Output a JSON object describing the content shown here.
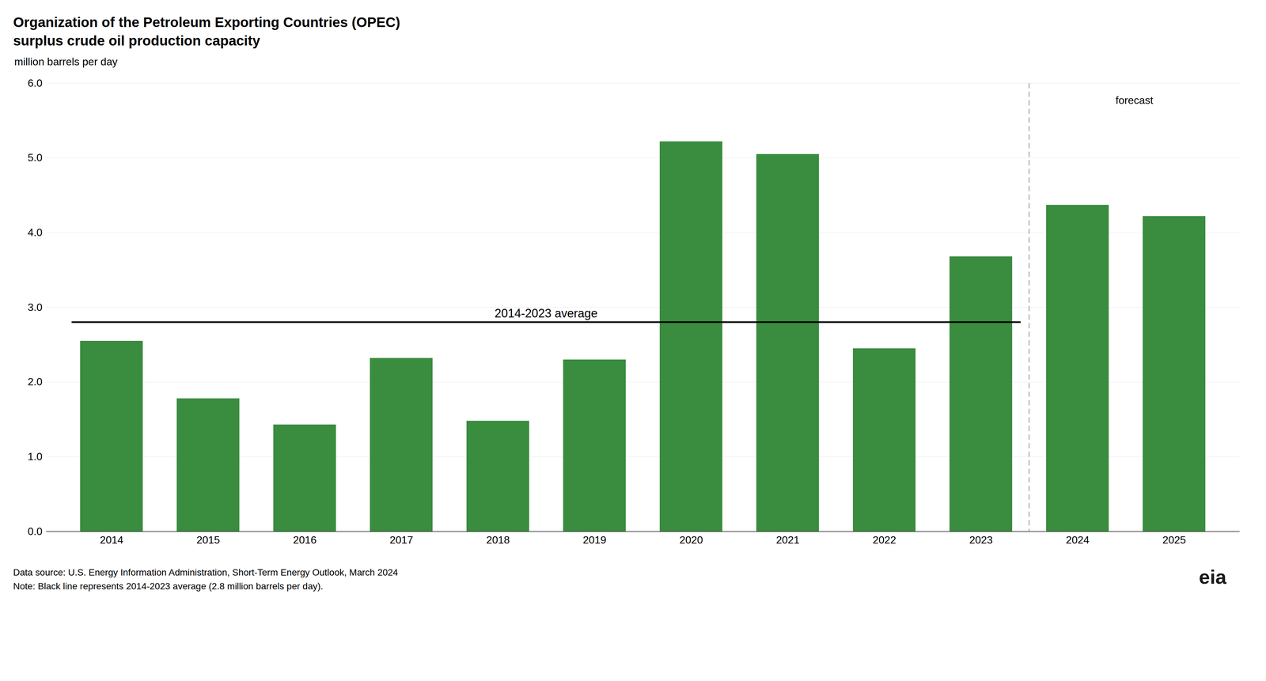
{
  "chart_data": {
    "type": "bar",
    "title": "Organization of the Petroleum Exporting Countries (OPEC)",
    "subtitle": "surplus crude oil production capacity",
    "ylabel": "million barrels per day",
    "categories": [
      "2014",
      "2015",
      "2016",
      "2017",
      "2018",
      "2019",
      "2020",
      "2021",
      "2022",
      "2023",
      "2024",
      "2025"
    ],
    "values": [
      2.55,
      1.78,
      1.43,
      2.32,
      1.48,
      2.3,
      5.22,
      5.05,
      2.45,
      3.68,
      4.37,
      4.22
    ],
    "color": "#3a8c3f",
    "ylim": [
      0,
      6
    ],
    "yticks": [
      0,
      1,
      2,
      3,
      4,
      5,
      6
    ],
    "grid": true,
    "average": {
      "value": 2.8,
      "label": "2014-2023 average",
      "from": "2014",
      "to": "2023",
      "color": "#000000"
    },
    "forecast": {
      "label": "forecast",
      "from": "2024",
      "color": "#aaaaaa"
    },
    "source": "Data source: U.S. Energy Information Administration, Short-Term Energy Outlook, March 2024",
    "note": "Note: Black line represents 2014-2023 average (2.8 million barrels per day).",
    "logo": "eia"
  }
}
